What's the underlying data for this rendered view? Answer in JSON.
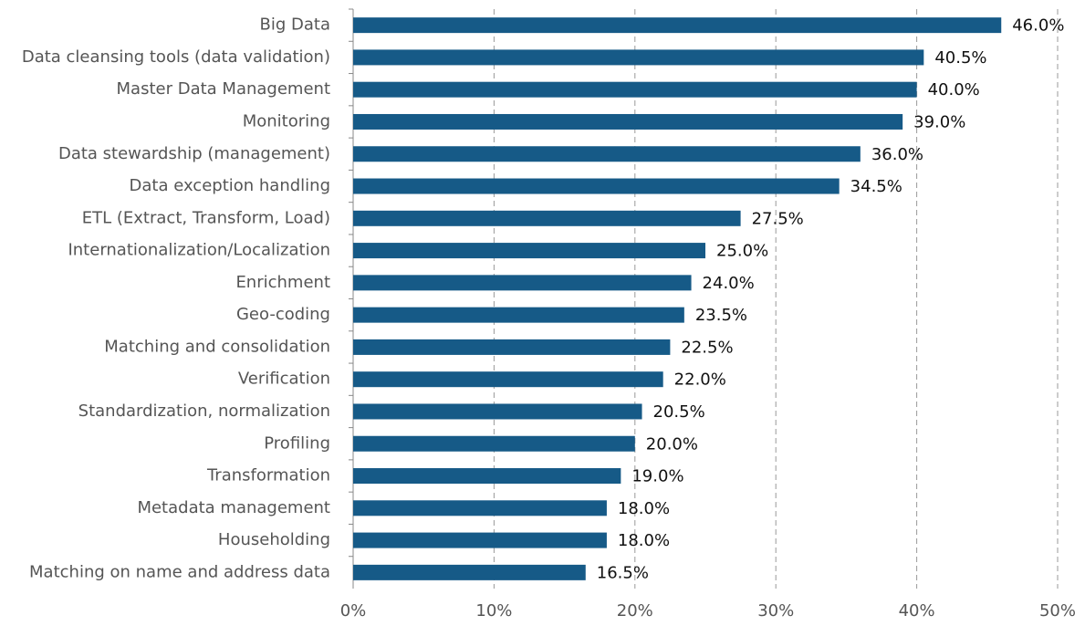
{
  "chart_data": {
    "type": "bar",
    "orientation": "horizontal",
    "categories": [
      "Big Data",
      "Data cleansing tools (data validation)",
      "Master Data Management",
      "Monitoring",
      "Data stewardship (management)",
      "Data exception handling",
      "ETL (Extract, Transform, Load)",
      "Internationalization/Localization",
      "Enrichment",
      "Geo-coding",
      "Matching and consolidation",
      "Verification",
      "Standardization, normalization",
      "Profiling",
      "Transformation",
      "Metadata management",
      "Householding",
      "Matching on name and address data"
    ],
    "values": [
      46.0,
      40.5,
      40.0,
      39.0,
      36.0,
      34.5,
      27.5,
      25.0,
      24.0,
      23.5,
      22.5,
      22.0,
      20.5,
      20.0,
      19.0,
      18.0,
      18.0,
      16.5
    ],
    "value_labels": [
      "46.0%",
      "40.5%",
      "40.0%",
      "39.0%",
      "36.0%",
      "34.5%",
      "27.5%",
      "25.0%",
      "24.0%",
      "23.5%",
      "22.5%",
      "22.0%",
      "20.5%",
      "20.0%",
      "19.0%",
      "18.0%",
      "18.0%",
      "16.5%"
    ],
    "color": "#165a87",
    "xlim": [
      0,
      50
    ],
    "xticks": [
      {
        "value": 0,
        "label": "0%"
      },
      {
        "value": 10,
        "label": "10%"
      },
      {
        "value": 20,
        "label": "20%"
      },
      {
        "value": 30,
        "label": "30%"
      },
      {
        "value": 40,
        "label": "40%"
      },
      {
        "value": 50,
        "label": "50%"
      }
    ],
    "grid": true
  }
}
